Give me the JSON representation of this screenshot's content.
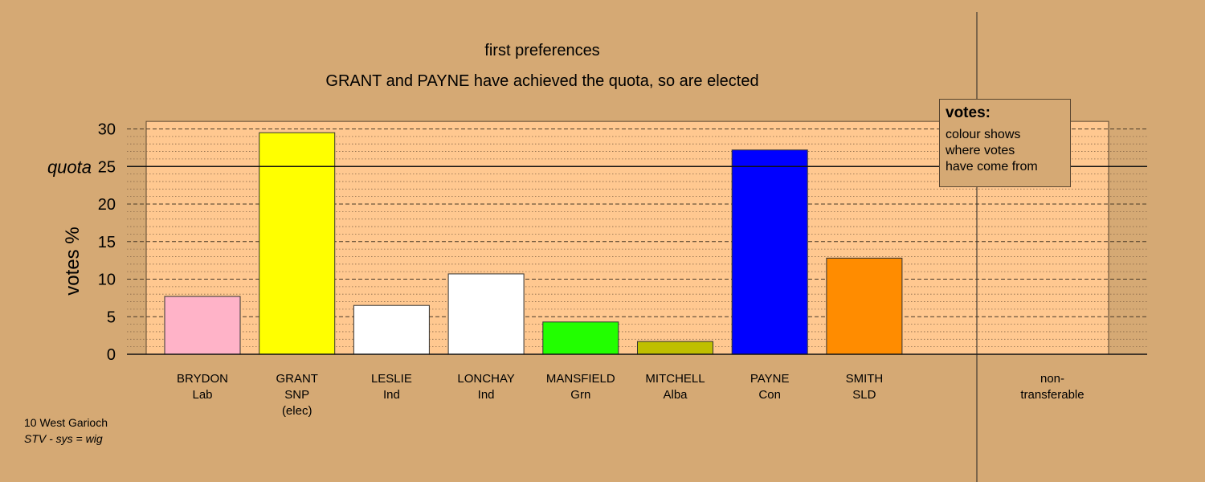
{
  "chart_data": {
    "type": "bar",
    "title": "first preferences",
    "subtitle": "GRANT and PAYNE have achieved the quota, so are elected",
    "ylabel": "votes %",
    "ylim": [
      0,
      31
    ],
    "yticks": [
      0,
      5,
      10,
      15,
      20,
      25,
      30
    ],
    "quota": 25,
    "quota_label": "quota",
    "categories": [
      {
        "name": "BRYDON",
        "party": "Lab",
        "note": "",
        "value": 7.7,
        "color": "#FFB3C8"
      },
      {
        "name": "GRANT",
        "party": "SNP",
        "note": "(elec)",
        "value": 29.5,
        "color": "#FFFF00"
      },
      {
        "name": "LESLIE",
        "party": "Ind",
        "note": "",
        "value": 6.5,
        "color": "#FFFFFF"
      },
      {
        "name": "LONCHAY",
        "party": "Ind",
        "note": "",
        "value": 10.7,
        "color": "#FFFFFF"
      },
      {
        "name": "MANSFIELD",
        "party": "Grn",
        "note": "",
        "value": 4.3,
        "color": "#22FF00"
      },
      {
        "name": "MITCHELL",
        "party": "Alba",
        "note": "",
        "value": 1.7,
        "color": "#BFBF00"
      },
      {
        "name": "PAYNE",
        "party": "Con",
        "note": "",
        "value": 27.2,
        "color": "#0000FF"
      },
      {
        "name": "SMITH",
        "party": "SLD",
        "note": "",
        "value": 12.8,
        "color": "#FF8C00"
      }
    ],
    "nontransferable": {
      "label_line1": "non-",
      "label_line2": "transferable",
      "value": 0
    },
    "grid": true
  },
  "legend": {
    "title": "votes:",
    "text": "colour shows\nwhere votes\nhave come from"
  },
  "footer": {
    "ward": "10 West Garioch",
    "system": "STV - sys = wig"
  },
  "colors": {
    "background": "#D5A974",
    "plot_area": "#FFC890"
  }
}
